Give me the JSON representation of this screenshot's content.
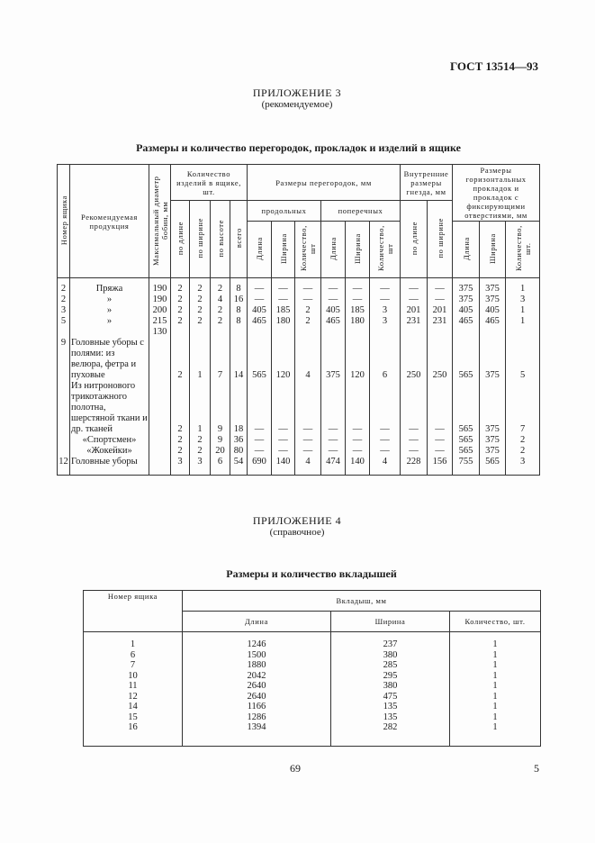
{
  "header": {
    "standard": "ГОСТ 13514—93"
  },
  "appendix3": {
    "title": "ПРИЛОЖЕНИЕ 3",
    "note": "(рекомендуемое)",
    "table_title": "Размеры и количество перегородок, прокладок и изделий в ящике",
    "table": {
      "head": {
        "box_number": "Номер ящика",
        "product": "Рекомендуемая продукция",
        "max_diameter": "Максимальный диаметр бобин, мм",
        "qty_group": "Количество изделий в ящике, шт.",
        "qty": [
          "по длине",
          "по ширине",
          "по высоте",
          "всего"
        ],
        "partitions_group": "Размеры перегородок, мм",
        "longitudinal": "продольных",
        "transverse": "поперечных",
        "partition_cols": [
          "Длина",
          "Ширина",
          "Количество, шт",
          "Длина",
          "Ширина",
          "Количество, шт"
        ],
        "inner_group": "Внутренние размеры гнезда, мм",
        "inner": [
          "по длине",
          "по ширине"
        ],
        "pads_group": "Размеры горизонтальных прокладок и прокладок с фиксирующими отверстиями, мм",
        "pads": [
          "Длина",
          "Ширина",
          "Количество, шт."
        ]
      },
      "rows": [
        [
          "2",
          "Пряжа",
          "190",
          "2",
          "2",
          "2",
          "8",
          "—",
          "—",
          "—",
          "—",
          "—",
          "—",
          "—",
          "—",
          "375",
          "375",
          "1"
        ],
        [
          "2",
          "»",
          "190",
          "2",
          "2",
          "4",
          "16",
          "—",
          "—",
          "—",
          "—",
          "—",
          "—",
          "—",
          "—",
          "375",
          "375",
          "3"
        ],
        [
          "3",
          "»",
          "200",
          "2",
          "2",
          "2",
          "8",
          "405",
          "185",
          "2",
          "405",
          "185",
          "3",
          "201",
          "201",
          "405",
          "405",
          "1"
        ],
        [
          "5",
          "»",
          "215",
          "2",
          "2",
          "2",
          "8",
          "465",
          "180",
          "2",
          "465",
          "180",
          "3",
          "231",
          "231",
          "465",
          "465",
          "1"
        ],
        [
          null,
          null,
          "130",
          null,
          null,
          null,
          null,
          null,
          null,
          null,
          null,
          null,
          null,
          null,
          null,
          null,
          null,
          null
        ],
        [
          "9",
          "Головные уборы с полями: из велюра, фетра и пуховые",
          null,
          "2",
          "1",
          "7",
          "14",
          "565",
          "120",
          "4",
          "375",
          "120",
          "6",
          "250",
          "250",
          "565",
          "375",
          "5"
        ],
        [
          null,
          "Из нитронового трикотажного полотна, шерстяной ткани и др. тканей",
          null,
          "2",
          "1",
          "9",
          "18",
          "—",
          "—",
          "—",
          "—",
          "—",
          "—",
          "—",
          "—",
          "565",
          "375",
          "7"
        ],
        [
          null,
          "«Спортсмен»",
          null,
          "2",
          "2",
          "9",
          "36",
          "—",
          "—",
          "—",
          "—",
          "—",
          "—",
          "—",
          "—",
          "565",
          "375",
          "2"
        ],
        [
          null,
          "«Жокейки»",
          null,
          "2",
          "2",
          "20",
          "80",
          "—",
          "—",
          "—",
          "—",
          "—",
          "—",
          "—",
          "—",
          "565",
          "375",
          "2"
        ],
        [
          "12",
          "Головные уборы",
          null,
          "3",
          "3",
          "6",
          "54",
          "690",
          "140",
          "4",
          "474",
          "140",
          "4",
          "228",
          "156",
          "755",
          "565",
          "3"
        ]
      ]
    }
  },
  "appendix4": {
    "title": "ПРИЛОЖЕНИЕ 4",
    "note": "(справочное)",
    "table_title": "Размеры и количество вкладышей",
    "table": {
      "head": {
        "box_number": "Номер ящика",
        "insert_group": "Вкладыш, мм",
        "cols": [
          "Длина",
          "Ширина",
          "Количество, шт."
        ]
      },
      "rows": [
        [
          "1",
          "1246",
          "237",
          "1"
        ],
        [
          "6",
          "1500",
          "380",
          "1"
        ],
        [
          "7",
          "1880",
          "285",
          "1"
        ],
        [
          "10",
          "2042",
          "295",
          "1"
        ],
        [
          "11",
          "2640",
          "380",
          "1"
        ],
        [
          "12",
          "2640",
          "475",
          "1"
        ],
        [
          "14",
          "1166",
          "135",
          "1"
        ],
        [
          "15",
          "1286",
          "135",
          "1"
        ],
        [
          "16",
          "1394",
          "282",
          "1"
        ]
      ]
    }
  },
  "footer": {
    "page": "69",
    "sheet": "5"
  }
}
